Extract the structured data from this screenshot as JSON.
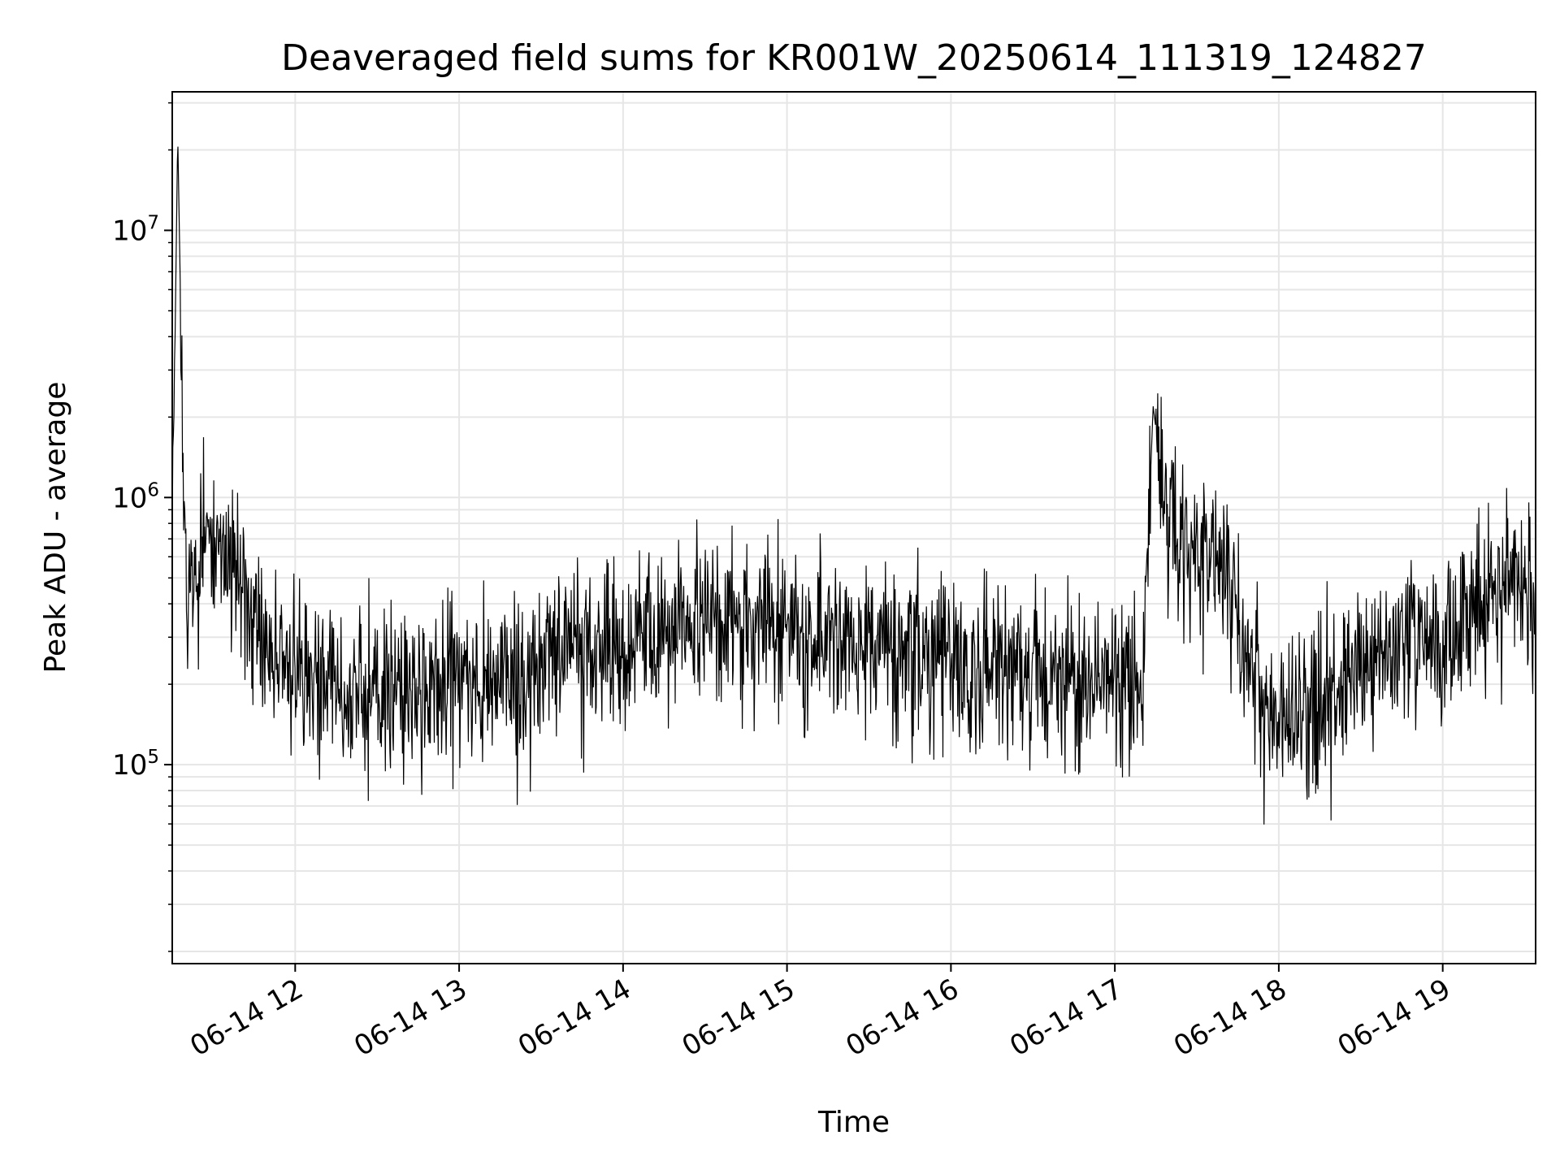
{
  "chart_data": {
    "type": "line",
    "title": "Deaveraged field sums for KR001W_20250614_111319_124827",
    "xlabel": "Time",
    "ylabel": "Peak ADU - average",
    "y_scale": "log",
    "grid": true,
    "legend": "none",
    "line_color": "#000000",
    "grid_color": "#e6e6e6",
    "xlim": [
      "2025-06-14 11:15",
      "2025-06-14 19:34"
    ],
    "ylim": [
      18000,
      33000000
    ],
    "x_ticks": [
      {
        "value": "2025-06-14 12:00",
        "label": "06-14 12"
      },
      {
        "value": "2025-06-14 13:00",
        "label": "06-14 13"
      },
      {
        "value": "2025-06-14 14:00",
        "label": "06-14 14"
      },
      {
        "value": "2025-06-14 15:00",
        "label": "06-14 15"
      },
      {
        "value": "2025-06-14 16:00",
        "label": "06-14 16"
      },
      {
        "value": "2025-06-14 17:00",
        "label": "06-14 17"
      },
      {
        "value": "2025-06-14 18:00",
        "label": "06-14 18"
      },
      {
        "value": "2025-06-14 19:00",
        "label": "06-14 19"
      }
    ],
    "y_ticks": [
      {
        "value": 100000,
        "base": "10",
        "exp": "5"
      },
      {
        "value": 1000000,
        "base": "10",
        "exp": "6"
      },
      {
        "value": 10000000,
        "base": "10",
        "exp": "7"
      }
    ],
    "series": [
      {
        "x": [
          "2025-06-14 11:15",
          "2025-06-14 11:17",
          "2025-06-14 11:20",
          "2025-06-14 11:25",
          "2025-06-14 11:30",
          "2025-06-14 11:35",
          "2025-06-14 11:40",
          "2025-06-14 11:45",
          "2025-06-14 11:50",
          "2025-06-14 11:55",
          "2025-06-14 12:00",
          "2025-06-14 12:10",
          "2025-06-14 12:20",
          "2025-06-14 12:30",
          "2025-06-14 12:40",
          "2025-06-14 12:50",
          "2025-06-14 13:00",
          "2025-06-14 13:10",
          "2025-06-14 13:20",
          "2025-06-14 13:30",
          "2025-06-14 13:45",
          "2025-06-14 14:00",
          "2025-06-14 14:15",
          "2025-06-14 14:30",
          "2025-06-14 14:45",
          "2025-06-14 15:00",
          "2025-06-14 15:15",
          "2025-06-14 15:30",
          "2025-06-14 15:45",
          "2025-06-14 16:00",
          "2025-06-14 16:15",
          "2025-06-14 16:30",
          "2025-06-14 16:45",
          "2025-06-14 17:00",
          "2025-06-14 17:10",
          "2025-06-14 17:14",
          "2025-06-14 17:20",
          "2025-06-14 17:30",
          "2025-06-14 17:40",
          "2025-06-14 17:45",
          "2025-06-14 17:55",
          "2025-06-14 18:05",
          "2025-06-14 18:15",
          "2025-06-14 18:30",
          "2025-06-14 18:45",
          "2025-06-14 19:00",
          "2025-06-14 19:15",
          "2025-06-14 19:30",
          "2025-06-14 19:34"
        ],
        "y": [
          600000,
          23000000,
          350000,
          700000,
          650000,
          600000,
          500000,
          300000,
          280000,
          240000,
          230000,
          200000,
          180000,
          190000,
          175000,
          180000,
          200000,
          210000,
          220000,
          240000,
          280000,
          290000,
          300000,
          320000,
          340000,
          320000,
          290000,
          290000,
          280000,
          240000,
          230000,
          220000,
          210000,
          200000,
          180000,
          2200000,
          700000,
          600000,
          500000,
          350000,
          150000,
          150000,
          160000,
          240000,
          300000,
          280000,
          400000,
          500000,
          420000
        ]
      }
    ]
  }
}
